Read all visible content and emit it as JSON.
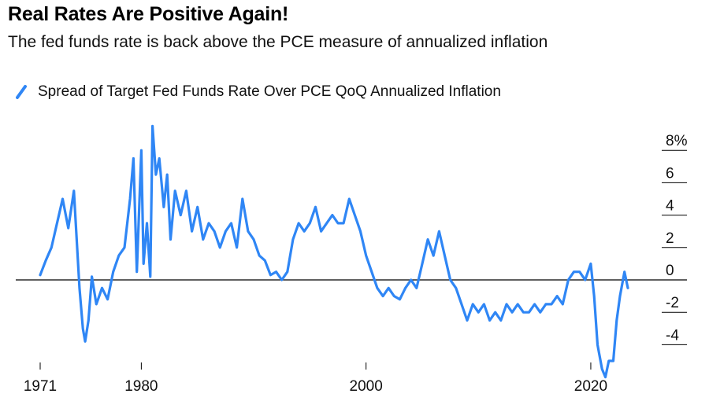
{
  "header": {
    "title": "Real Rates Are Positive Again!",
    "subtitle": "The fed funds rate is back above the PCE measure of annualized inflation"
  },
  "legend": {
    "label": "Spread of Target Fed Funds Rate Over PCE QoQ Annualized Inflation"
  },
  "colors": {
    "series": "#2f86f5",
    "zero_line": "#000000",
    "grid": "#000000"
  },
  "chart_data": {
    "type": "line",
    "title": "Real Rates Are Positive Again!",
    "subtitle": "The fed funds rate is back above the PCE measure of annualized inflation",
    "xlabel": "",
    "ylabel": "",
    "xlim": [
      1971,
      2024
    ],
    "ylim": [
      -6,
      9
    ],
    "x_ticks": [
      {
        "value": 1971,
        "label": "1971"
      },
      {
        "value": 1980,
        "label": "1980"
      },
      {
        "value": 2000,
        "label": "2000"
      },
      {
        "value": 2020,
        "label": "2020"
      }
    ],
    "y_ticks": [
      {
        "value": 8,
        "label": "8%"
      },
      {
        "value": 6,
        "label": "6"
      },
      {
        "value": 4,
        "label": "4"
      },
      {
        "value": 2,
        "label": "2"
      },
      {
        "value": 0,
        "label": "0"
      },
      {
        "value": -2,
        "label": "-2"
      },
      {
        "value": -4,
        "label": "-4"
      }
    ],
    "legend_position": "top-left",
    "grid": "y-tick marks only",
    "series": [
      {
        "name": "Spread of Target Fed Funds Rate Over PCE QoQ Annualized Inflation",
        "x": [
          1971.0,
          1971.5,
          1972.0,
          1972.5,
          1973.0,
          1973.5,
          1974.0,
          1974.5,
          1974.8,
          1975.0,
          1975.3,
          1975.6,
          1976.0,
          1976.5,
          1977.0,
          1977.5,
          1978.0,
          1978.5,
          1979.0,
          1979.3,
          1979.6,
          1980.0,
          1980.2,
          1980.5,
          1980.8,
          1981.0,
          1981.3,
          1981.6,
          1982.0,
          1982.3,
          1982.6,
          1983.0,
          1983.5,
          1984.0,
          1984.5,
          1985.0,
          1985.5,
          1986.0,
          1986.5,
          1987.0,
          1987.5,
          1988.0,
          1988.5,
          1989.0,
          1989.5,
          1990.0,
          1990.5,
          1991.0,
          1991.5,
          1992.0,
          1992.5,
          1993.0,
          1993.5,
          1994.0,
          1994.5,
          1995.0,
          1995.5,
          1996.0,
          1996.5,
          1997.0,
          1997.5,
          1998.0,
          1998.5,
          1999.0,
          1999.5,
          2000.0,
          2000.5,
          2001.0,
          2001.5,
          2002.0,
          2002.5,
          2003.0,
          2003.5,
          2004.0,
          2004.5,
          2005.0,
          2005.5,
          2006.0,
          2006.5,
          2007.0,
          2007.5,
          2008.0,
          2008.5,
          2009.0,
          2009.5,
          2010.0,
          2010.5,
          2011.0,
          2011.5,
          2012.0,
          2012.5,
          2013.0,
          2013.5,
          2014.0,
          2014.5,
          2015.0,
          2015.5,
          2016.0,
          2016.5,
          2017.0,
          2017.5,
          2018.0,
          2018.5,
          2019.0,
          2019.5,
          2020.0,
          2020.3,
          2020.6,
          2021.0,
          2021.3,
          2021.6,
          2022.0,
          2022.3,
          2022.6,
          2023.0,
          2023.3
        ],
        "values": [
          0.3,
          1.2,
          2.0,
          3.5,
          5.0,
          3.2,
          5.5,
          -0.5,
          -3.0,
          -3.8,
          -2.5,
          0.2,
          -1.5,
          -0.5,
          -1.2,
          0.5,
          1.5,
          2.0,
          5.0,
          7.5,
          0.5,
          8.0,
          1.0,
          3.5,
          0.2,
          9.5,
          6.5,
          7.5,
          4.5,
          6.5,
          2.5,
          5.5,
          4.0,
          5.5,
          3.0,
          4.5,
          2.5,
          3.5,
          3.0,
          2.0,
          3.0,
          3.5,
          2.0,
          5.0,
          3.0,
          2.5,
          1.5,
          1.2,
          0.3,
          0.5,
          0.0,
          0.5,
          2.5,
          3.5,
          3.0,
          3.5,
          4.5,
          3.0,
          3.5,
          4.0,
          3.5,
          3.5,
          5.0,
          4.0,
          3.0,
          1.5,
          0.5,
          -0.5,
          -1.0,
          -0.5,
          -1.0,
          -1.2,
          -0.5,
          0.0,
          -0.5,
          1.0,
          2.5,
          1.5,
          3.0,
          1.5,
          0.0,
          -0.5,
          -1.5,
          -2.5,
          -1.5,
          -2.0,
          -1.5,
          -2.5,
          -2.0,
          -2.5,
          -1.5,
          -2.0,
          -1.5,
          -2.0,
          -2.0,
          -1.5,
          -2.0,
          -1.5,
          -1.5,
          -1.0,
          -1.5,
          0.0,
          0.5,
          0.5,
          0.0,
          1.0,
          -1.0,
          -4.0,
          -5.5,
          -6.0,
          -5.0,
          -5.0,
          -2.5,
          -1.0,
          0.5,
          -0.5
        ]
      }
    ]
  }
}
